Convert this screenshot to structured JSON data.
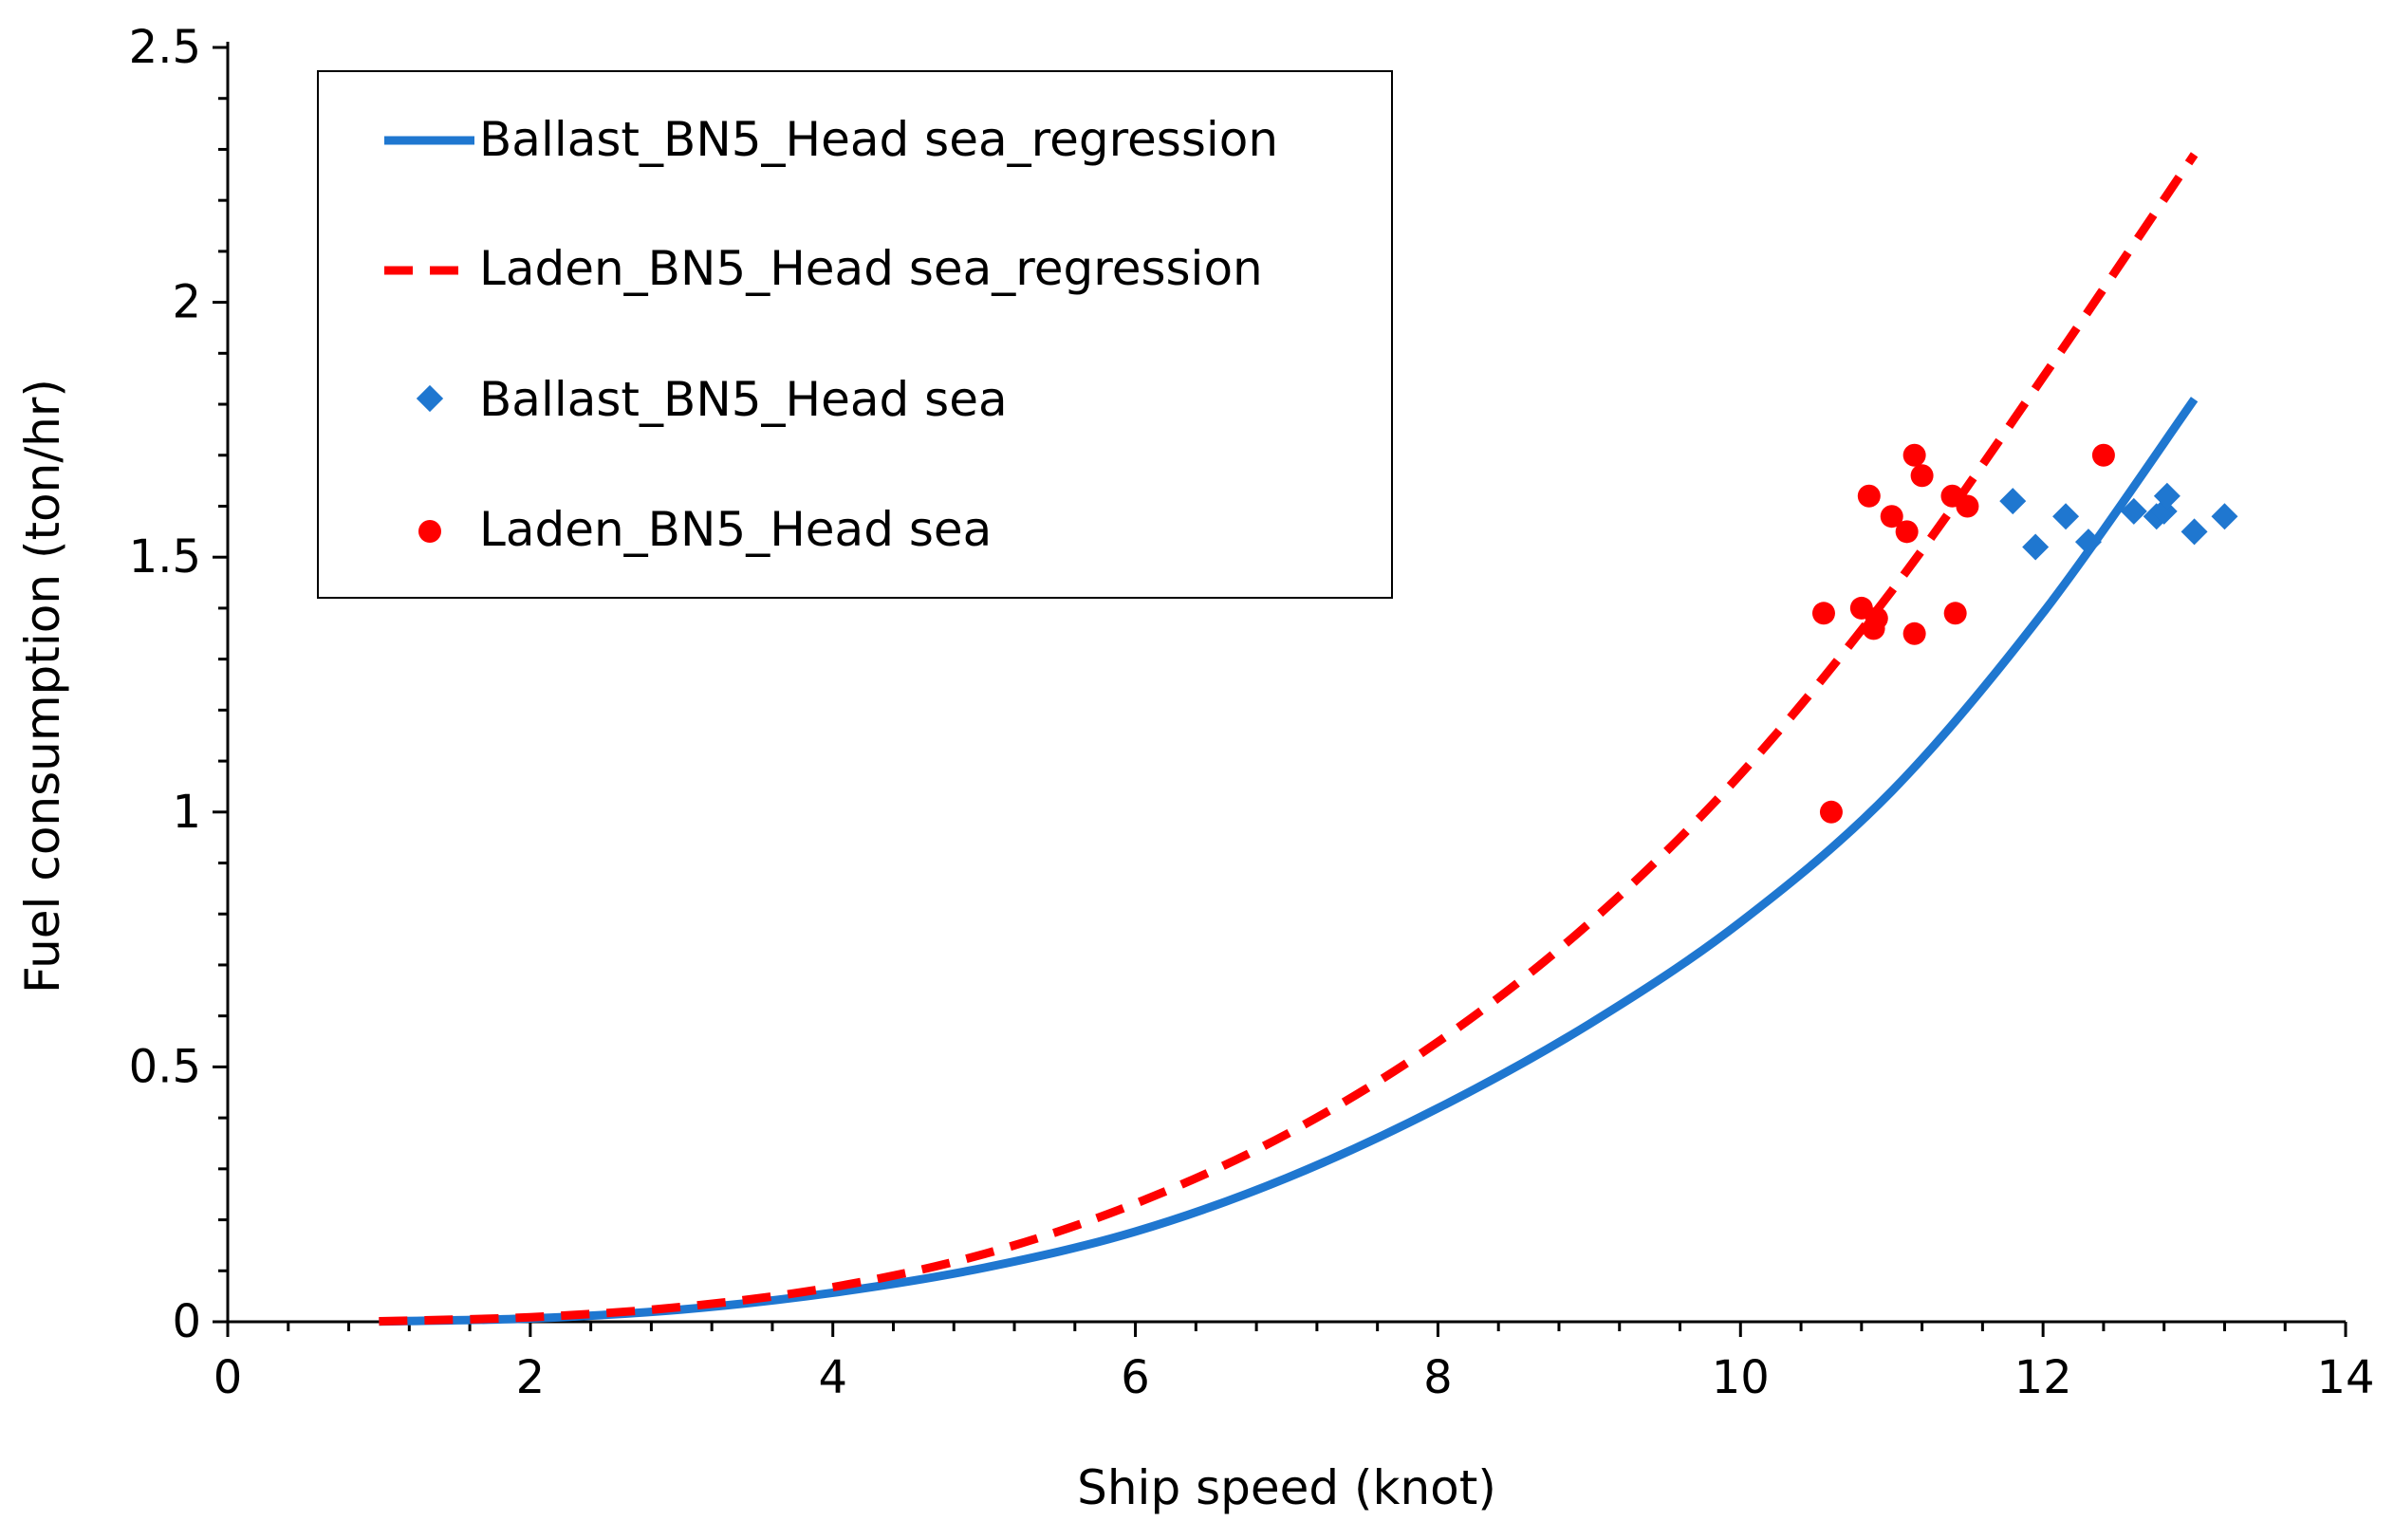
{
  "chart_data": {
    "type": "scatter",
    "title": "",
    "xlabel": "Ship speed (knot)",
    "ylabel": "Fuel consumption (ton/hr)",
    "xlim": [
      0,
      14
    ],
    "ylim": [
      0,
      2.5
    ],
    "xticks": [
      "0",
      "2",
      "4",
      "6",
      "8",
      "10",
      "12",
      "14"
    ],
    "yticks": [
      "0",
      "0.5",
      "1",
      "1.5",
      "2",
      "2.5"
    ],
    "grid": false,
    "legend_position": "top-left",
    "series": [
      {
        "name": "Ballast_BN5_Head sea_regression",
        "kind": "line",
        "style": "solid",
        "color": "#1f77d0",
        "x": [
          1,
          2,
          3,
          4,
          5,
          6,
          7,
          8,
          9,
          10,
          11,
          12,
          13
        ],
        "y": [
          0.0005,
          0.0066,
          0.024,
          0.057,
          0.106,
          0.177,
          0.282,
          0.419,
          0.584,
          0.784,
          1.041,
          1.391,
          1.81
        ]
      },
      {
        "name": "Laden_BN5_Head sea_regression",
        "kind": "line",
        "style": "dashed",
        "color": "#ff0000",
        "x": [
          1,
          2,
          3,
          4,
          5,
          6,
          7,
          8,
          9,
          10,
          11,
          12,
          13
        ],
        "y": [
          0.001,
          0.009,
          0.029,
          0.068,
          0.133,
          0.232,
          0.368,
          0.549,
          0.782,
          1.074,
          1.434,
          1.853,
          2.29
        ]
      },
      {
        "name": "Ballast_BN5_Head sea",
        "kind": "scatter",
        "marker": "diamond",
        "color": "#1f77d0",
        "x": [
          11.8,
          11.95,
          12.15,
          12.3,
          12.6,
          12.75,
          12.8,
          12.82,
          13.0,
          13.2
        ],
        "y": [
          1.61,
          1.52,
          1.58,
          1.53,
          1.59,
          1.58,
          1.59,
          1.62,
          1.55,
          1.58
        ]
      },
      {
        "name": "Laden_BN5_Head sea",
        "kind": "scatter",
        "marker": "circle",
        "color": "#ff0000",
        "x": [
          10.55,
          10.6,
          10.8,
          10.85,
          10.88,
          10.9,
          11.0,
          11.1,
          11.15,
          11.15,
          11.2,
          11.4,
          11.42,
          11.5,
          12.4
        ],
        "y": [
          1.39,
          1.0,
          1.4,
          1.62,
          1.36,
          1.38,
          1.58,
          1.55,
          1.35,
          1.7,
          1.66,
          1.62,
          1.39,
          1.6,
          1.7
        ]
      }
    ]
  }
}
